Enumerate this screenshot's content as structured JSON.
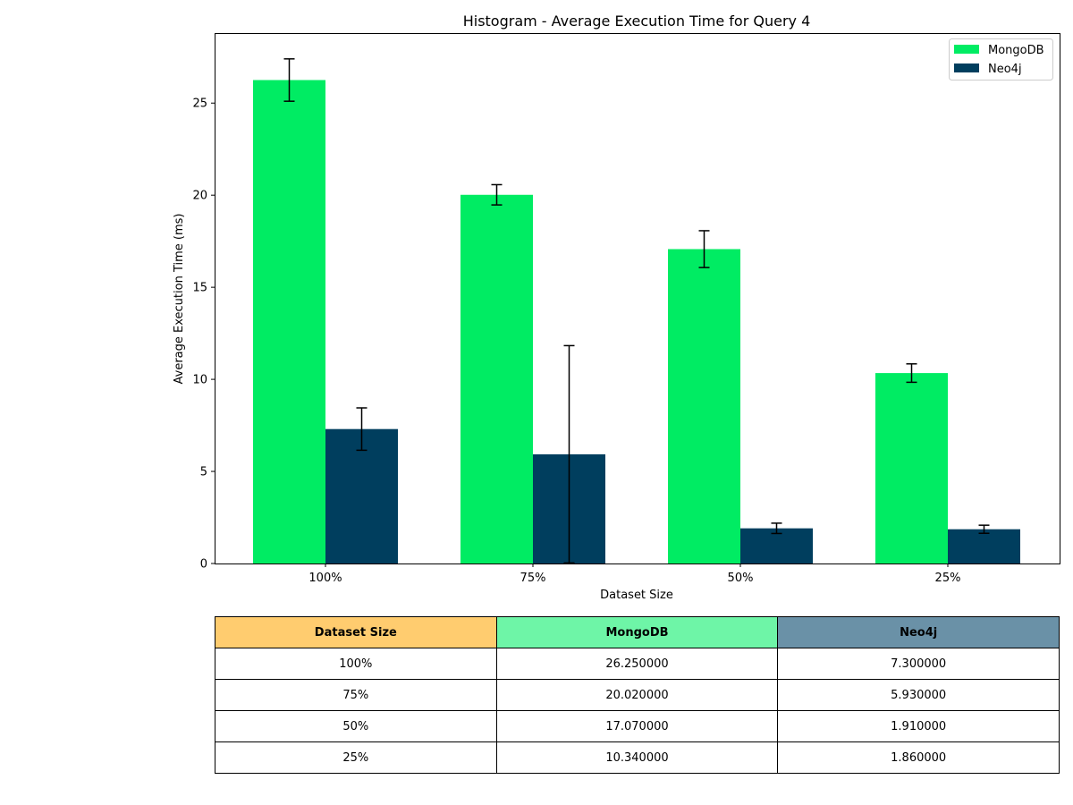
{
  "colors": {
    "mongodb": "#00ec63",
    "neo4j": "#003e5e",
    "header_dataset": "#ffcc6f",
    "header_mongodb": "#6ef5a7",
    "header_neo4j": "#6a91a7"
  },
  "chart_data": {
    "type": "bar",
    "title": "Histogram - Average Execution Time for Query 4",
    "xlabel": "Dataset Size",
    "ylabel": "Average Execution Time (ms)",
    "categories": [
      "100%",
      "75%",
      "50%",
      "25%"
    ],
    "ylim": [
      0,
      28.8
    ],
    "yticks": [
      0,
      5,
      10,
      15,
      20,
      25
    ],
    "legend_position": "top-right",
    "grid": false,
    "series": [
      {
        "name": "MongoDB",
        "color": "#00ec63",
        "values": [
          26.25,
          20.02,
          17.07,
          10.34
        ],
        "error": [
          1.15,
          0.55,
          1.0,
          0.5
        ]
      },
      {
        "name": "Neo4j",
        "color": "#003e5e",
        "values": [
          7.3,
          5.93,
          1.91,
          1.86
        ],
        "error": [
          1.15,
          5.9,
          0.28,
          0.22
        ]
      }
    ]
  },
  "table": {
    "headers": [
      "Dataset Size",
      "MongoDB",
      "Neo4j"
    ],
    "rows": [
      [
        "100%",
        "26.250000",
        "7.300000"
      ],
      [
        "75%",
        "20.020000",
        "5.930000"
      ],
      [
        "50%",
        "17.070000",
        "1.910000"
      ],
      [
        "25%",
        "10.340000",
        "1.860000"
      ]
    ]
  }
}
